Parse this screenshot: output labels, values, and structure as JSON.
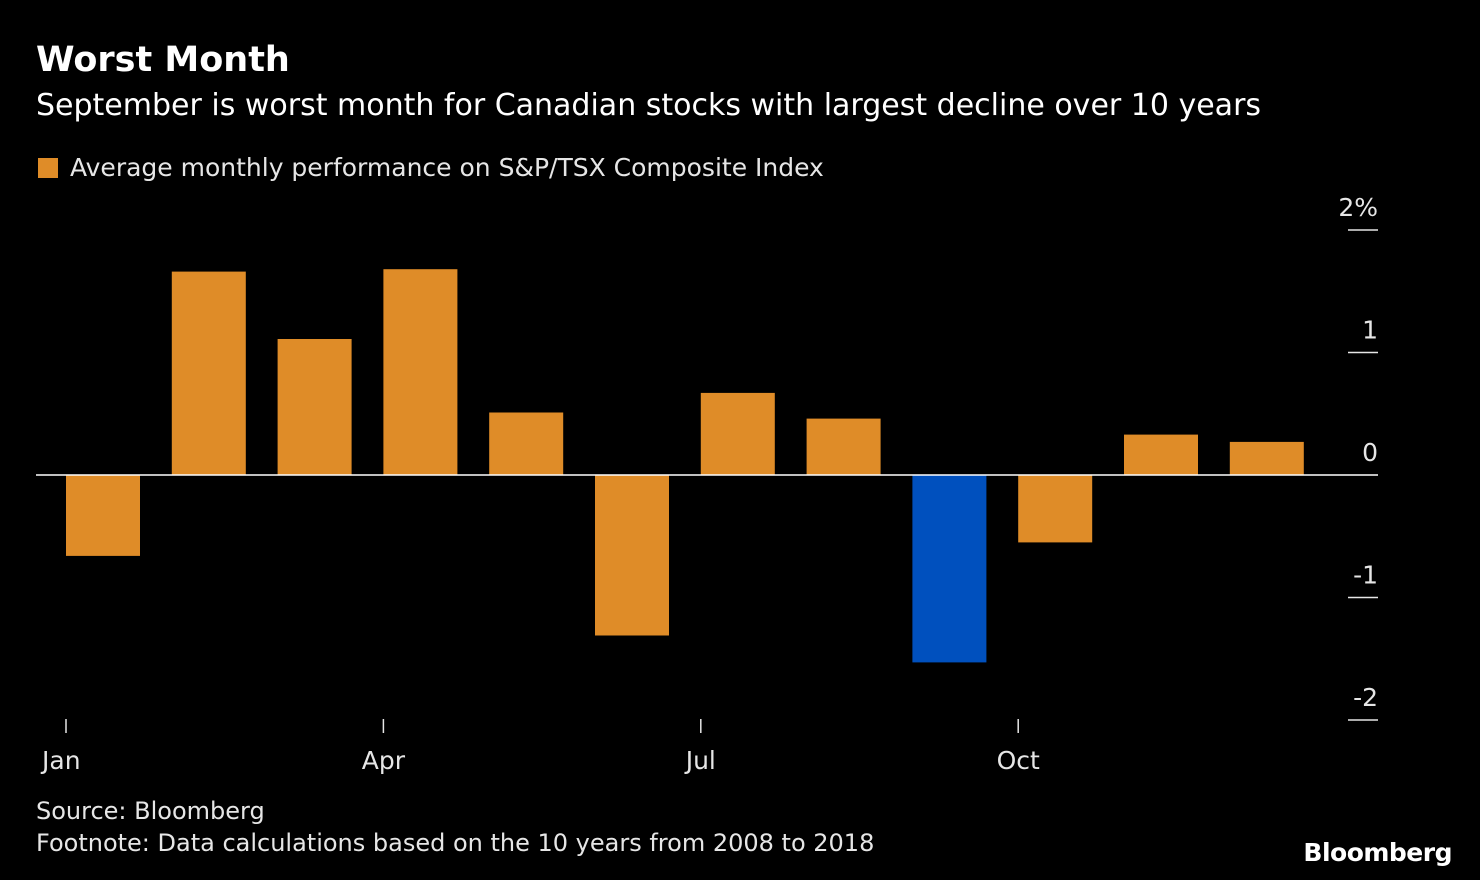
{
  "header": {
    "title": "Worst Month",
    "subtitle": "September is worst month for Canadian stocks with largest decline over 10 years"
  },
  "legend": {
    "label": "Average monthly performance on S&P/TSX Composite Index"
  },
  "footer": {
    "source": "Source: Bloomberg",
    "footnote": "Footnote: Data calculations based on the 10 years from 2008 to 2018",
    "brand": "Bloomberg"
  },
  "colors": {
    "background": "#000000",
    "bar": "#df8c28",
    "highlight": "#0050be",
    "axis": "#ffffff",
    "text": "#e6e6e6"
  },
  "chart_data": {
    "type": "bar",
    "categories": [
      "Jan",
      "Feb",
      "Mar",
      "Apr",
      "May",
      "Jun",
      "Jul",
      "Aug",
      "Sep",
      "Oct",
      "Nov",
      "Dec"
    ],
    "category_labels_shown": [
      "Jan",
      "",
      "",
      "Apr",
      "",
      "",
      "Jul",
      "",
      "",
      "Oct",
      "",
      ""
    ],
    "series": [
      {
        "name": "Average monthly performance on S&P/TSX Composite Index",
        "values": [
          -0.66,
          1.66,
          1.11,
          1.68,
          0.51,
          -1.31,
          0.67,
          0.46,
          -1.53,
          -0.55,
          0.33,
          0.27
        ]
      }
    ],
    "highlight_index": 8,
    "y_ticks": [
      2,
      1,
      0,
      -1,
      -2
    ],
    "y_tick_labels": [
      "2%",
      "1",
      "0",
      "-1",
      "-2"
    ],
    "ylim": [
      -2,
      2
    ],
    "y_axis_position": "right",
    "grid": false,
    "legend_position": "top-left",
    "xlabel": "",
    "ylabel": ""
  }
}
